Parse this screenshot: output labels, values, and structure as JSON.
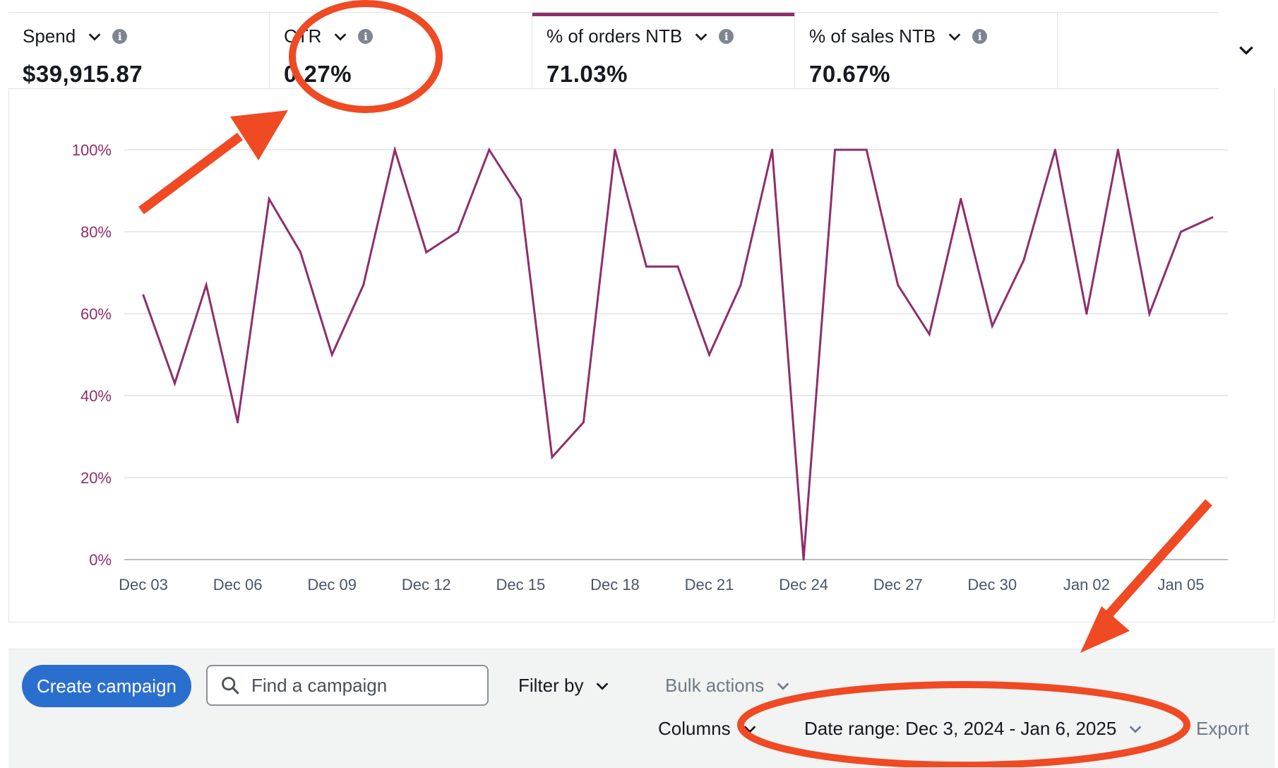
{
  "metrics": [
    {
      "label": "Spend",
      "value": "$39,915.87",
      "selected": false
    },
    {
      "label": "CTR",
      "value": "0.27%",
      "selected": false
    },
    {
      "label": "% of orders NTB",
      "value": "71.03%",
      "selected": true
    },
    {
      "label": "% of sales NTB",
      "value": "70.67%",
      "selected": false
    }
  ],
  "icons": {
    "metric_dropdown": "chevron-down-icon",
    "metric_info": "info-icon",
    "expand": "chevron-down-icon",
    "search": "search-icon"
  },
  "colors": {
    "series_line": "#8e2f6b",
    "axis_label": "#8e2f6b",
    "primary_button": "#2a6fce",
    "annotation": "#ef4a23",
    "toolbar_bg": "#f2f3f3"
  },
  "chart_data": {
    "type": "line",
    "title": "",
    "xlabel": "",
    "ylabel": "",
    "ylim": [
      0,
      100
    ],
    "y_ticks": [
      "0%",
      "20%",
      "40%",
      "60%",
      "80%",
      "100%"
    ],
    "x_tick_labels": [
      "Dec 03",
      "Dec 06",
      "Dec 09",
      "Dec 12",
      "Dec 15",
      "Dec 18",
      "Dec 21",
      "Dec 24",
      "Dec 27",
      "Dec 30",
      "Jan 02",
      "Jan 05"
    ],
    "x": [
      "Dec 03",
      "Dec 04",
      "Dec 05",
      "Dec 06",
      "Dec 07",
      "Dec 08",
      "Dec 09",
      "Dec 10",
      "Dec 11",
      "Dec 12",
      "Dec 13",
      "Dec 14",
      "Dec 15",
      "Dec 16",
      "Dec 17",
      "Dec 18",
      "Dec 19",
      "Dec 20",
      "Dec 21",
      "Dec 22",
      "Dec 23",
      "Dec 24",
      "Dec 25",
      "Dec 26",
      "Dec 27",
      "Dec 28",
      "Dec 29",
      "Dec 30",
      "Dec 31",
      "Jan 01",
      "Jan 02",
      "Jan 03",
      "Jan 04",
      "Jan 05",
      "Jan 06"
    ],
    "series": [
      {
        "values": [
          64.5,
          43,
          67,
          33.5,
          88,
          75,
          50,
          67,
          100,
          75,
          80,
          100,
          88,
          25,
          33.5,
          100,
          71.5,
          71.5,
          50,
          67,
          100,
          0,
          100,
          100,
          67,
          55,
          88,
          57,
          73,
          100,
          60,
          100,
          60,
          80,
          83.5
        ]
      }
    ],
    "grid": true,
    "legend": "none"
  },
  "toolbar": {
    "create_label": "Create campaign",
    "search_placeholder": "Find a campaign",
    "filter_label": "Filter by",
    "bulk_label": "Bulk actions",
    "columns_label": "Columns",
    "date_range_label": "Date range: Dec 3, 2024 - Jan 6, 2025",
    "export_label": "Export"
  }
}
